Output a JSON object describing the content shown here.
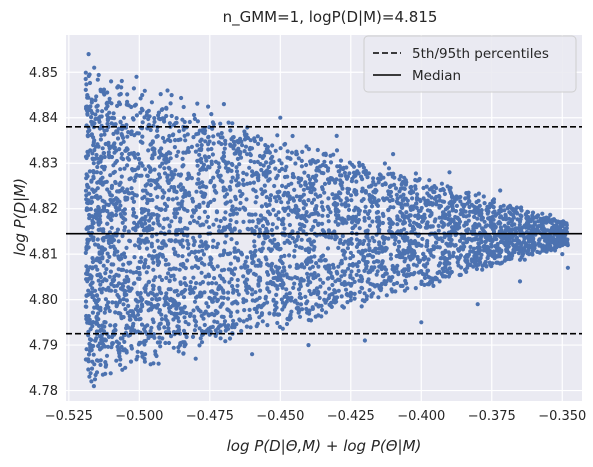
{
  "chart_data": {
    "type": "scatter",
    "title": "n_GMM=1, logP(D|M)=4.815",
    "xlabel": "log P(D|Θ,M) + log P(Θ|M)",
    "ylabel": "log P(D|M)",
    "xlim": [
      -0.526,
      -0.343
    ],
    "ylim": [
      4.7777,
      4.8582
    ],
    "xticks": [
      -0.525,
      -0.5,
      -0.475,
      -0.45,
      -0.425,
      -0.4,
      -0.375,
      -0.35
    ],
    "xtick_labels": [
      "−0.525",
      "−0.500",
      "−0.475",
      "−0.450",
      "−0.425",
      "−0.400",
      "−0.375",
      "−0.350"
    ],
    "yticks": [
      4.78,
      4.79,
      4.8,
      4.81,
      4.82,
      4.83,
      4.84,
      4.85
    ],
    "ytick_labels": [
      "4.78",
      "4.79",
      "4.80",
      "4.81",
      "4.82",
      "4.83",
      "4.84",
      "4.85"
    ],
    "grid": true,
    "background": "#eaeaf2",
    "marker_color": "#4c72b0",
    "legend": {
      "placement": "top-right",
      "entries": [
        {
          "label": "5th/95th percentiles",
          "style": "dashed"
        },
        {
          "label": "Median",
          "style": "solid"
        }
      ]
    },
    "hlines": [
      {
        "y": 4.7925,
        "style": "dashed",
        "role": "5th percentile"
      },
      {
        "y": 4.8145,
        "style": "solid",
        "role": "median"
      },
      {
        "y": 4.838,
        "style": "dashed",
        "role": "95th percentile"
      }
    ],
    "point_cloud": {
      "count": 4200,
      "x_min": -0.519,
      "x_max": -0.348,
      "y_center": 4.8145,
      "y_halfwidth_at_x_min": 0.0345,
      "y_halfwidth_at_x_max": 0.003,
      "y_spread_skew_up": 0.3
    },
    "points_sample": [
      [
        -0.518,
        4.854
      ],
      [
        -0.517,
        4.782
      ],
      [
        -0.516,
        4.851
      ],
      [
        -0.515,
        4.784
      ],
      [
        -0.51,
        4.848
      ],
      [
        -0.505,
        4.785
      ],
      [
        -0.501,
        4.849
      ],
      [
        -0.495,
        4.786
      ],
      [
        -0.49,
        4.846
      ],
      [
        -0.48,
        4.787
      ],
      [
        -0.47,
        4.843
      ],
      [
        -0.46,
        4.788
      ],
      [
        -0.45,
        4.84
      ],
      [
        -0.44,
        4.79
      ],
      [
        -0.43,
        4.836
      ],
      [
        -0.42,
        4.791
      ],
      [
        -0.41,
        4.832
      ],
      [
        -0.4,
        4.795
      ],
      [
        -0.39,
        4.828
      ],
      [
        -0.38,
        4.799
      ],
      [
        -0.372,
        4.824
      ],
      [
        -0.365,
        4.804
      ],
      [
        -0.36,
        4.818
      ],
      [
        -0.355,
        4.812
      ],
      [
        -0.35,
        4.81
      ],
      [
        -0.348,
        4.807
      ]
    ]
  }
}
